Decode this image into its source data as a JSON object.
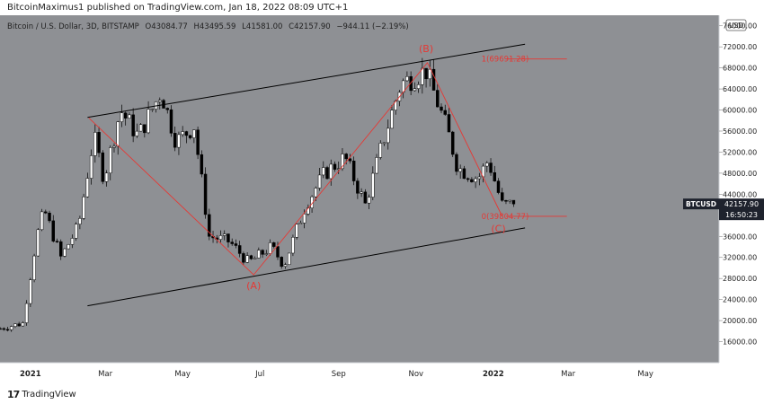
{
  "header": {
    "publisher": "BitcoinMaximus1",
    "published_text": "published on TradingView.com, Jan 18, 2022 08:09 UTC+1"
  },
  "legend": {
    "symbol": "Bitcoin / U.S. Dollar, 3D, BITSTAMP",
    "o_label": "O",
    "o_value": "43084.77",
    "h_label": "H",
    "h_value": "43495.59",
    "l_label": "L",
    "l_value": "41581.00",
    "c_label": "C",
    "c_value": "42157.90",
    "change": "−944.11 (−2.19%)"
  },
  "footer": {
    "logo_glyph": "17",
    "brand": "TradingView"
  },
  "colors": {
    "plot_bg": "#8e9094",
    "axis_bg": "#ffffff",
    "bull": "#ffffff",
    "bear": "#000000",
    "channel": "#000000",
    "wave": "#e53935",
    "label_dark": "#1e222d"
  },
  "chart_data": {
    "type": "candlestick",
    "currency_badge": "USD",
    "y_axis": {
      "ylim": [
        12000,
        78000
      ],
      "ticks": [
        16000,
        20000,
        24000,
        28000,
        32000,
        36000,
        40000,
        44000,
        48000,
        52000,
        56000,
        60000,
        64000,
        68000,
        72000,
        76000
      ],
      "tick_labels": [
        "16000.00",
        "20000.00",
        "24000.00",
        "28000.00",
        "32000.00",
        "36000.00",
        "40000.00",
        "44000.00",
        "48000.00",
        "52000.00",
        "56000.00",
        "60000.00",
        "64000.00",
        "68000.00",
        "72000.00",
        "76000.00"
      ]
    },
    "x_axis": {
      "ticks": [
        {
          "label": "2021",
          "date": "2021-01-01"
        },
        {
          "label": "Mar",
          "date": "2021-03-01"
        },
        {
          "label": "May",
          "date": "2021-05-01"
        },
        {
          "label": "Jul",
          "date": "2021-07-01"
        },
        {
          "label": "Sep",
          "date": "2021-09-01"
        },
        {
          "label": "Nov",
          "date": "2021-11-01"
        },
        {
          "label": "2022",
          "date": "2022-01-01"
        },
        {
          "label": "Mar",
          "date": "2022-03-01"
        },
        {
          "label": "May",
          "date": "2022-05-01"
        }
      ],
      "xlim": [
        "2020-12-08",
        "2022-06-28"
      ]
    },
    "price_path": [
      [
        "2020-12-08",
        18500
      ],
      [
        "2020-12-26",
        19500
      ],
      [
        "2021-01-06",
        36000
      ],
      [
        "2021-01-12",
        41000
      ],
      [
        "2021-01-25",
        32000
      ],
      [
        "2021-02-08",
        38000
      ],
      [
        "2021-02-20",
        55000
      ],
      [
        "2021-02-28",
        47000
      ],
      [
        "2021-03-13",
        60000
      ],
      [
        "2021-03-27",
        55000
      ],
      [
        "2021-04-14",
        63500
      ],
      [
        "2021-04-26",
        54000
      ],
      [
        "2021-05-10",
        57000
      ],
      [
        "2021-05-22",
        36000
      ],
      [
        "2021-06-07",
        35000
      ],
      [
        "2021-06-22",
        31000
      ],
      [
        "2021-07-10",
        34000
      ],
      [
        "2021-07-20",
        30500
      ],
      [
        "2021-08-06",
        42000
      ],
      [
        "2021-08-21",
        48000
      ],
      [
        "2021-09-06",
        51000
      ],
      [
        "2021-09-22",
        42000
      ],
      [
        "2021-10-06",
        54000
      ],
      [
        "2021-10-20",
        65000
      ],
      [
        "2021-11-09",
        67500
      ],
      [
        "2021-11-26",
        56000
      ],
      [
        "2021-12-04",
        49000
      ],
      [
        "2021-12-20",
        47000
      ],
      [
        "2021-12-28",
        50500
      ],
      [
        "2022-01-08",
        42000
      ],
      [
        "2022-01-18",
        42158
      ]
    ],
    "last_price": {
      "label": "BTCUSD",
      "value": 42157.9,
      "value_text": "42157.90",
      "countdown": "16:50:23"
    },
    "channel_lines": [
      {
        "from": {
          "date": "2021-02-15",
          "price": 58600
        },
        "to": {
          "date": "2022-01-26",
          "price": 72500
        }
      },
      {
        "from": {
          "date": "2021-02-15",
          "price": 22800
        },
        "to": {
          "date": "2022-01-26",
          "price": 37600
        }
      }
    ],
    "wave_path": [
      {
        "date": "2021-02-16",
        "price": 58500
      },
      {
        "date": "2021-06-26",
        "price": 28700
      },
      {
        "date": "2021-11-10",
        "price": 69000
      },
      {
        "date": "2022-01-08",
        "price": 39804.77
      }
    ],
    "wave_labels": [
      {
        "text": "(A)",
        "date": "2021-06-26",
        "price": 26000
      },
      {
        "text": "(B)",
        "date": "2021-11-09",
        "price": 71000
      },
      {
        "text": "(C)",
        "date": "2022-01-05",
        "price": 36800
      }
    ],
    "fib_levels": [
      {
        "ratio": "1",
        "text": "1(69691.28)",
        "price": 69691.28,
        "from": "2022-01-11",
        "to": "2022-02-28"
      },
      {
        "ratio": "0",
        "text": "0(39804.77)",
        "price": 39804.77,
        "from": "2022-01-11",
        "to": "2022-02-28"
      }
    ]
  }
}
